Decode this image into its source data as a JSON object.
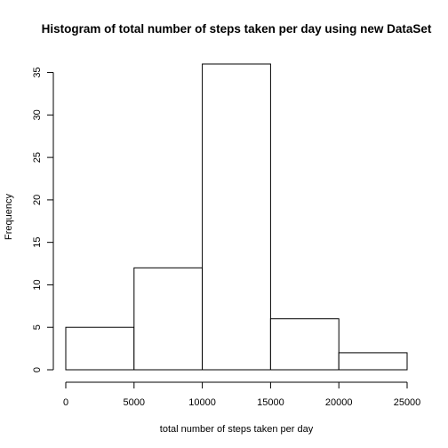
{
  "chart_data": {
    "type": "bar",
    "title": "Histogram of total number of steps taken per day using new DataSet",
    "xlabel": "total number of steps taken per day",
    "ylabel": "Frequency",
    "bins": [
      {
        "x0": 0,
        "x1": 5000,
        "count": 5
      },
      {
        "x0": 5000,
        "x1": 10000,
        "count": 12
      },
      {
        "x0": 10000,
        "x1": 15000,
        "count": 36
      },
      {
        "x0": 15000,
        "x1": 20000,
        "count": 6
      },
      {
        "x0": 20000,
        "x1": 25000,
        "count": 2
      }
    ],
    "xlim": [
      0,
      25000
    ],
    "ylim": [
      0,
      36
    ],
    "x_ticks": [
      0,
      5000,
      10000,
      15000,
      20000,
      25000
    ],
    "y_ticks": [
      0,
      5,
      10,
      15,
      20,
      25,
      30,
      35
    ],
    "grid": false,
    "colors": {
      "fill": "#ffffff",
      "stroke": "#000000"
    }
  }
}
